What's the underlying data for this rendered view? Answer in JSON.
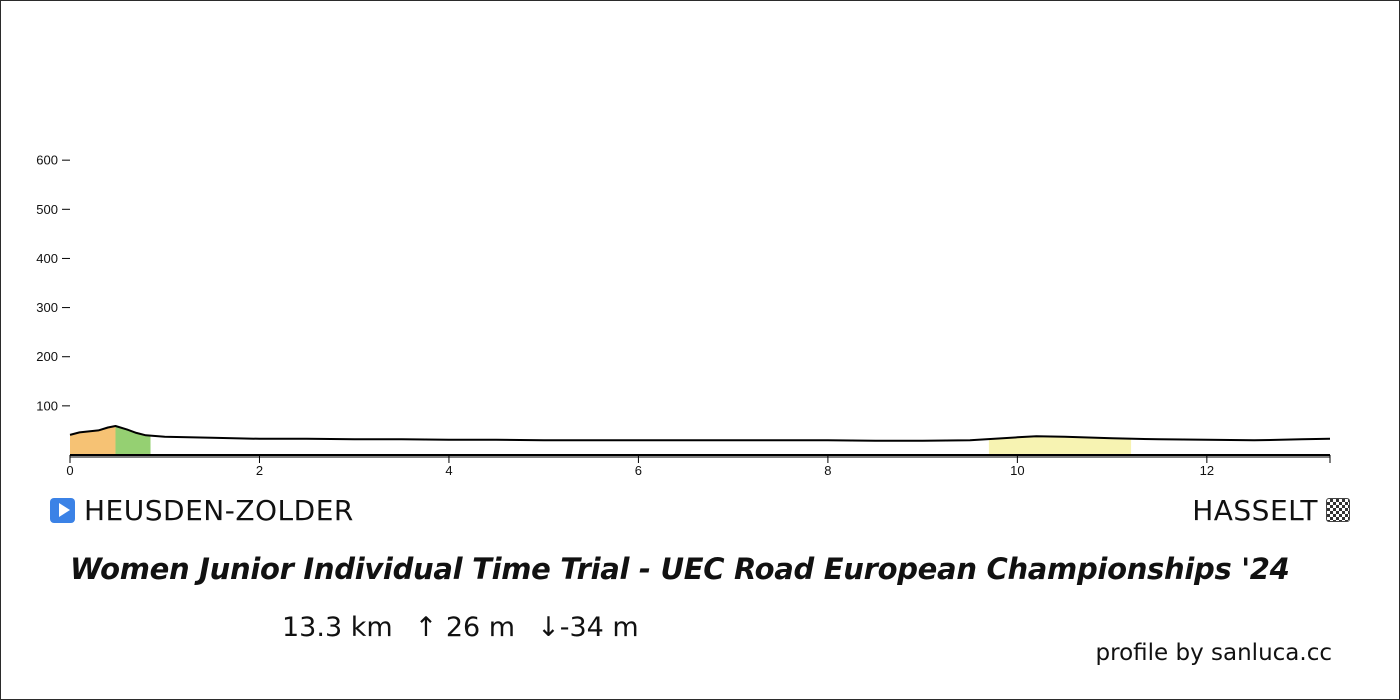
{
  "race": {
    "title": "Women Junior Individual Time Trial - UEC Road European Championships '24",
    "start": "HEUSDEN-ZOLDER",
    "finish": "HASSELT",
    "distance": "13.3 km",
    "gain": "↑ 26 m",
    "loss": "↓-34 m",
    "credit": "profile by sanluca.cc",
    "start_icon": "play-icon",
    "finish_icon": "checkered-flag-icon"
  },
  "chart_data": {
    "type": "area",
    "title": "",
    "xlabel": "",
    "ylabel": "",
    "xlim": [
      0,
      13.3
    ],
    "ylim": [
      0,
      600
    ],
    "x_ticks": [
      0,
      2,
      4,
      6,
      8,
      10,
      12
    ],
    "y_ticks": [
      100,
      200,
      300,
      400,
      500,
      600
    ],
    "grid": false,
    "series": [
      {
        "x": [
          0,
          0.1,
          0.2,
          0.3,
          0.4,
          0.48,
          0.6,
          0.7,
          0.8,
          1.0,
          1.5,
          2.0,
          2.5,
          3.0,
          3.5,
          4.0,
          4.5,
          5.0,
          5.5,
          6.0,
          6.5,
          7.0,
          7.5,
          8.0,
          8.5,
          9.0,
          9.5,
          10.0,
          10.2,
          10.5,
          11.0,
          11.5,
          12.0,
          12.5,
          13.0,
          13.3
        ],
        "y": [
          41,
          46,
          48,
          50,
          56,
          59,
          52,
          45,
          40,
          37,
          35,
          33,
          33,
          32,
          32,
          31,
          31,
          30,
          30,
          30,
          30,
          30,
          30,
          30,
          29,
          29,
          30,
          36,
          38,
          37,
          34,
          32,
          31,
          30,
          32,
          33
        ]
      }
    ],
    "segments": [
      {
        "from": 0,
        "to": 0.48,
        "color": "#f6c274"
      },
      {
        "from": 0.48,
        "to": 0.85,
        "color": "#95d072"
      },
      {
        "from": 9.7,
        "to": 11.2,
        "color": "#f7f3b2"
      }
    ],
    "line_color": "#000000",
    "base_fill": "#ffffff"
  }
}
